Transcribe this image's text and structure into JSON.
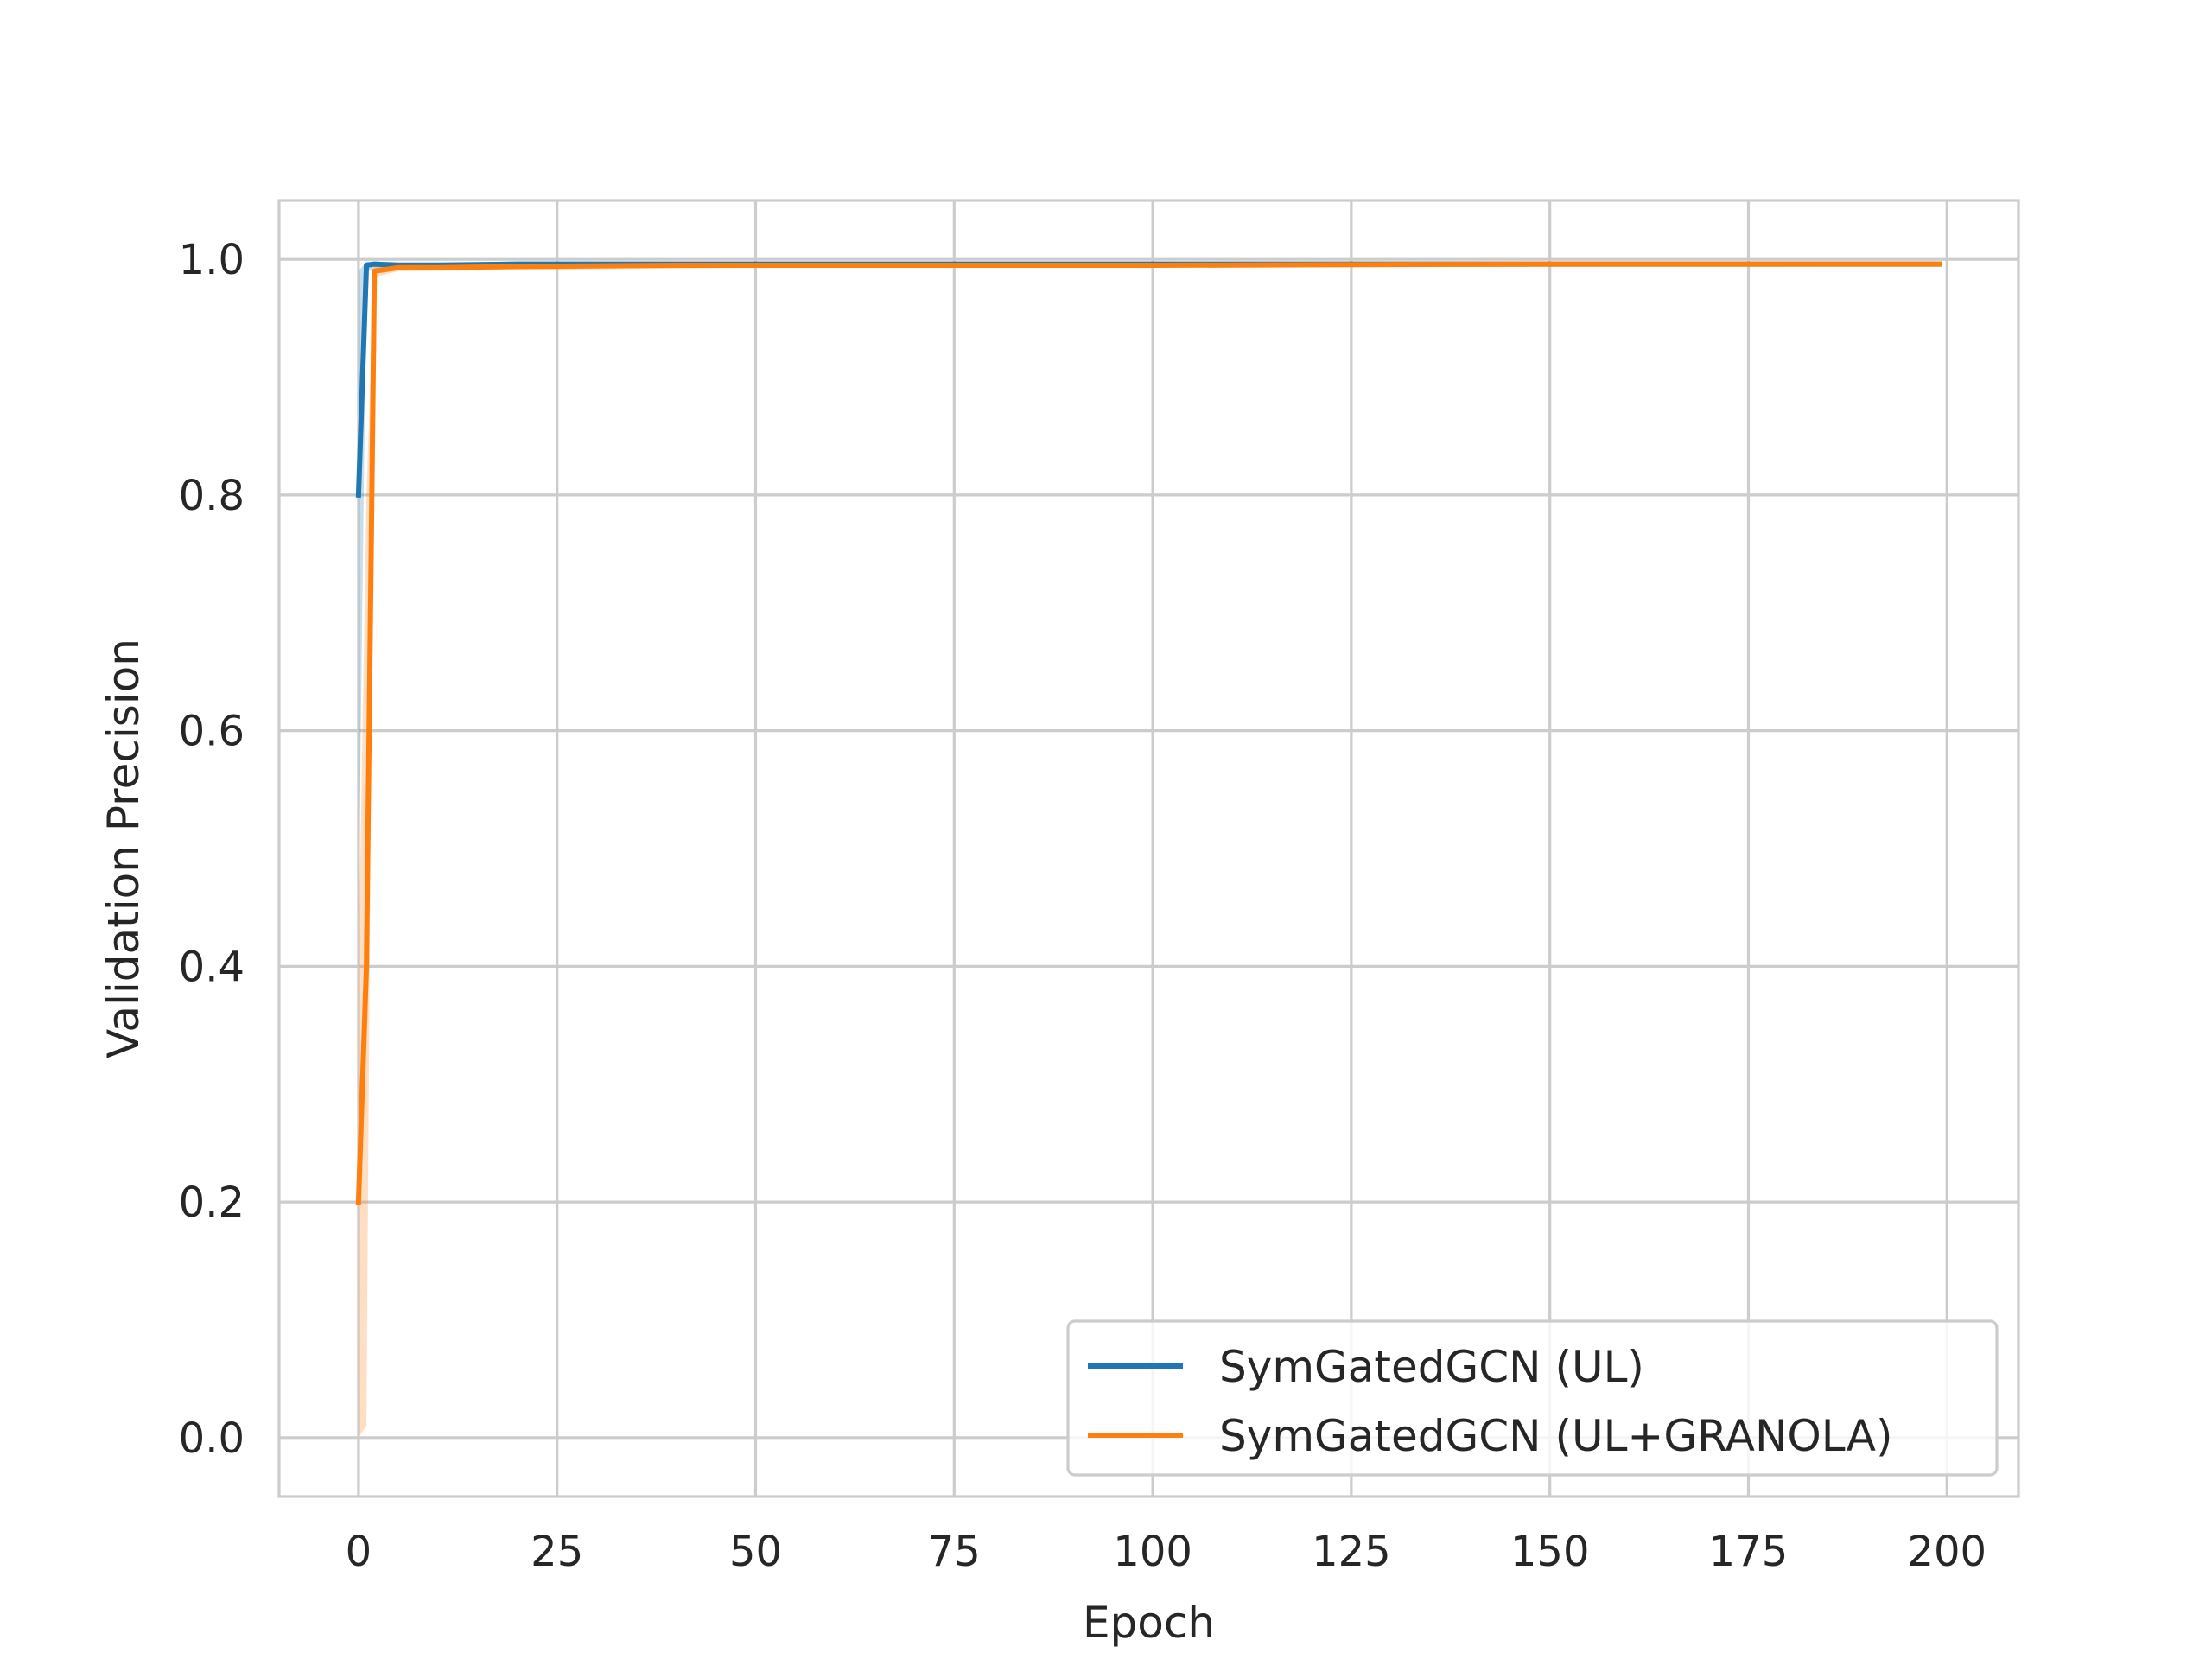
{
  "chart_data": {
    "type": "line",
    "title": "",
    "xlabel": "Epoch",
    "ylabel": "Validation Precision",
    "xlim": [
      -10,
      209
    ],
    "ylim": [
      -0.05,
      1.05
    ],
    "xticks": [
      0,
      25,
      50,
      75,
      100,
      125,
      150,
      175,
      200
    ],
    "yticks": [
      0.0,
      0.2,
      0.4,
      0.6,
      0.8,
      1.0
    ],
    "xtick_labels": [
      "0",
      "25",
      "50",
      "75",
      "100",
      "125",
      "150",
      "175",
      "200"
    ],
    "ytick_labels": [
      "0.0",
      "0.2",
      "0.4",
      "0.6",
      "0.8",
      "1.0"
    ],
    "grid": true,
    "legend_position": "lower-right",
    "series": [
      {
        "name": "SymGatedGCN (UL)",
        "color": "#1f77b4",
        "points": [
          [
            0,
            0.8
          ],
          [
            1,
            0.995
          ],
          [
            2,
            0.996
          ],
          [
            5,
            0.995
          ],
          [
            10,
            0.995
          ],
          [
            20,
            0.996
          ],
          [
            40,
            0.996
          ],
          [
            60,
            0.996
          ],
          [
            100,
            0.996
          ],
          [
            150,
            0.996
          ],
          [
            199,
            0.996
          ]
        ],
        "band": [
          [
            0,
            0.44,
            0.99
          ],
          [
            1,
            0.99,
            0.998
          ],
          [
            5,
            0.993,
            0.998
          ],
          [
            50,
            0.994,
            0.998
          ],
          [
            199,
            0.994,
            0.998
          ]
        ]
      },
      {
        "name": "SymGatedGCN (UL+GRANOLA)",
        "color": "#ff7f0e",
        "points": [
          [
            0,
            0.2
          ],
          [
            1,
            0.4
          ],
          [
            2,
            0.99
          ],
          [
            5,
            0.993
          ],
          [
            10,
            0.993
          ],
          [
            20,
            0.994
          ],
          [
            40,
            0.995
          ],
          [
            60,
            0.995
          ],
          [
            100,
            0.995
          ],
          [
            150,
            0.996
          ],
          [
            199,
            0.996
          ]
        ],
        "band": [
          [
            0,
            0.0,
            0.4
          ],
          [
            1,
            0.01,
            0.8
          ],
          [
            2,
            0.985,
            0.995
          ],
          [
            5,
            0.99,
            0.997
          ],
          [
            50,
            0.993,
            0.997
          ],
          [
            199,
            0.994,
            0.998
          ]
        ]
      }
    ]
  }
}
